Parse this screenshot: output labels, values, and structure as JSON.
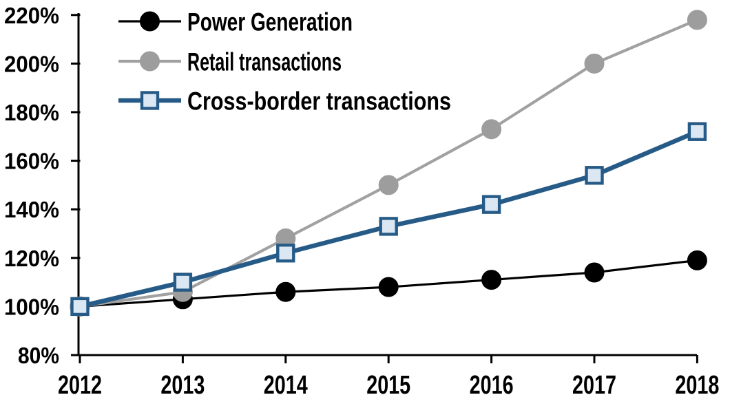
{
  "chart_data": {
    "type": "line",
    "title": "",
    "xlabel": "",
    "ylabel": "",
    "categories": [
      "2012",
      "2013",
      "2014",
      "2015",
      "2016",
      "2017",
      "2018"
    ],
    "series": [
      {
        "name": "Power Generation",
        "values": [
          100,
          103,
          106,
          108,
          111,
          114,
          119
        ],
        "color": "#000000",
        "marker": "circle",
        "marker_fill": "#000000",
        "marker_stroke": "#000000"
      },
      {
        "name": "Retail transactions",
        "values": [
          100,
          106,
          128,
          150,
          173,
          200,
          218
        ],
        "color": "#a1a1a1",
        "marker": "circle",
        "marker_fill": "#9d9d9d",
        "marker_stroke": "#9d9d9d"
      },
      {
        "name": "Cross-border transactions",
        "values": [
          100,
          110,
          122,
          133,
          142,
          154,
          172
        ],
        "color": "#275b87",
        "marker": "square",
        "marker_fill": "#dbe8f4",
        "marker_stroke": "#275b87"
      }
    ],
    "ylim": [
      80,
      220
    ],
    "ytick_step": 20,
    "ytick_labels": [
      "80%",
      "100%",
      "120%",
      "140%",
      "160%",
      "180%",
      "200%",
      "220%"
    ],
    "xtick_labels": [
      "2012",
      "2013",
      "2014",
      "2015",
      "2016",
      "2017",
      "2018"
    ],
    "grid": false,
    "legend_position": "top-left",
    "axis_color": "#000000",
    "background_color": "#ffffff"
  }
}
